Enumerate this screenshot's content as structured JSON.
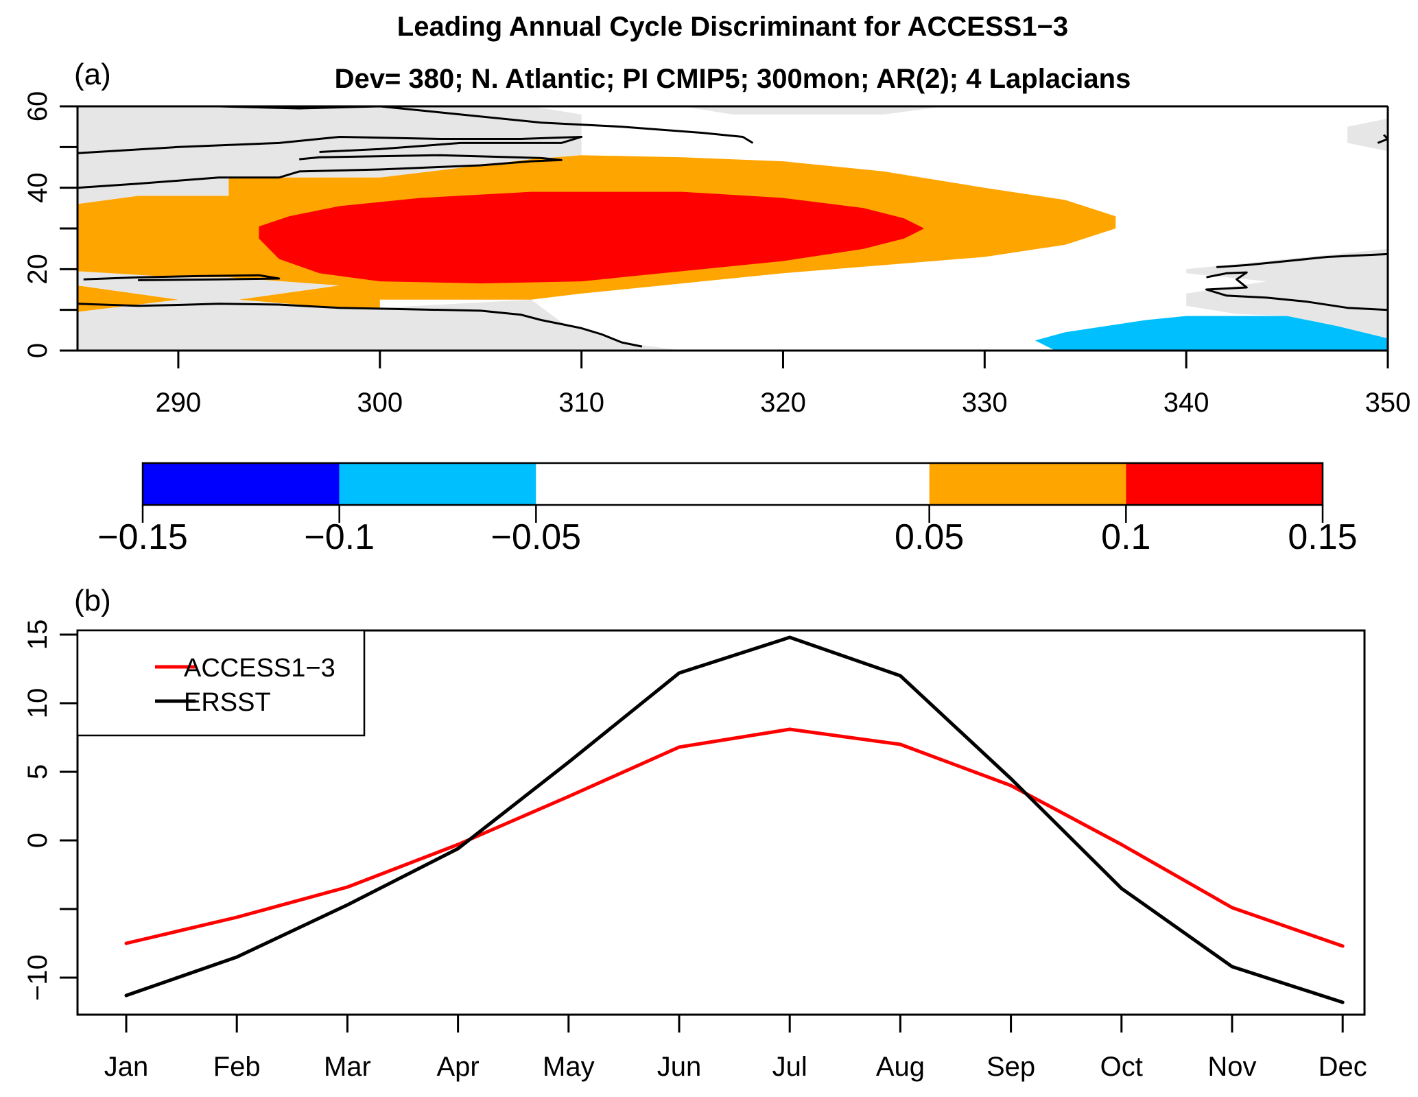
{
  "figure": {
    "title": "Leading Annual Cycle Discriminant for ACCESS1−3",
    "subtitle": "Dev= 380; N. Atlantic; PI CMIP5; 300mon; AR(2); 4 Laplacians"
  },
  "chart_data": [
    {
      "type": "heatmap",
      "panel_label": "(a)",
      "title": "Dev= 380; N. Atlantic; PI CMIP5; 300mon; AR(2); 4 Laplacians",
      "xlabel": "",
      "ylabel": "",
      "xlim": [
        285,
        350
      ],
      "ylim": [
        0,
        60
      ],
      "x_ticks": [
        290,
        300,
        310,
        320,
        330,
        340,
        350
      ],
      "x_tick_labels": [
        "290",
        "300",
        "310",
        "320",
        "330",
        "340",
        "350"
      ],
      "y_ticks": [
        0,
        10,
        20,
        30,
        40,
        50,
        60
      ],
      "y_tick_labels": [
        "0",
        "",
        "20",
        "",
        "40",
        "",
        "60"
      ],
      "colors": {
        "land": "#e6e6e6",
        "coast": "#000000",
        "level_neg_015_to_neg_01": "#0000ff",
        "level_neg_01_to_neg_005": "#00bfff",
        "level_neg_005_to_005": "#ffffff",
        "level_005_to_01": "#ffa500",
        "level_01_to_015": "#ff0000"
      },
      "regions": [
        {
          "name": "positive 0.05-0.1 (orange)",
          "level": [
            0.05,
            0.1
          ],
          "color": "#ffa500",
          "outline_lonlat": [
            [
              285,
              36
            ],
            [
              288,
              38
            ],
            [
              292.5,
              38
            ],
            [
              292.5,
              42.5
            ],
            [
              300,
              42.5
            ],
            [
              307.5,
              47
            ],
            [
              310,
              48
            ],
            [
              315,
              47.5
            ],
            [
              320,
              46.5
            ],
            [
              325,
              44
            ],
            [
              330,
              40
            ],
            [
              334,
              37
            ],
            [
              336.5,
              33
            ],
            [
              336.5,
              30
            ],
            [
              334,
              26
            ],
            [
              330,
              23
            ],
            [
              325,
              21
            ],
            [
              320,
              19
            ],
            [
              315,
              16.5
            ],
            [
              310,
              14
            ],
            [
              307.5,
              12.5
            ],
            [
              300,
              12.5
            ],
            [
              298,
              16
            ],
            [
              292.5,
              18
            ],
            [
              290,
              18
            ],
            [
              285,
              19.5
            ],
            [
              285,
              36
            ]
          ]
        },
        {
          "name": "positive 0.05-0.1 (orange, southwest lobe)",
          "level": [
            0.05,
            0.1
          ],
          "color": "#ffa500",
          "outline_lonlat": [
            [
              285,
              16
            ],
            [
              290,
              12.5
            ],
            [
              285,
              9.5
            ]
          ]
        },
        {
          "name": "positive 0.05-0.1 (orange, southwest lobe 2)",
          "level": [
            0.05,
            0.1
          ],
          "color": "#ffa500",
          "outline_lonlat": [
            [
              293,
              12.5
            ],
            [
              298,
              16
            ],
            [
              300,
              16
            ],
            [
              300,
              10.5
            ],
            [
              298,
              10.5
            ]
          ]
        },
        {
          "name": "positive 0.1-0.15 (red)",
          "level": [
            0.1,
            0.15
          ],
          "color": "#ff0000",
          "outline_lonlat": [
            [
              294,
              27.5
            ],
            [
              294,
              30.5
            ],
            [
              295.5,
              33
            ],
            [
              298,
              35.5
            ],
            [
              302,
              37.5
            ],
            [
              307.5,
              39
            ],
            [
              315,
              39
            ],
            [
              320,
              37.5
            ],
            [
              324,
              35
            ],
            [
              326,
              32.5
            ],
            [
              327,
              30
            ],
            [
              326,
              27.5
            ],
            [
              324,
              25
            ],
            [
              320,
              22
            ],
            [
              315,
              19.5
            ],
            [
              310,
              17
            ],
            [
              305,
              16.5
            ],
            [
              300,
              17
            ],
            [
              297,
              19
            ],
            [
              295,
              22.5
            ]
          ]
        },
        {
          "name": "negative -0.1 to -0.05 (light blue)",
          "level": [
            -0.1,
            -0.05
          ],
          "color": "#00bfff",
          "outline_lonlat": [
            [
              332.5,
              2.5
            ],
            [
              334,
              4.5
            ],
            [
              336,
              6
            ],
            [
              338,
              7.5
            ],
            [
              340,
              8.5
            ],
            [
              345,
              8.5
            ],
            [
              347.5,
              6
            ],
            [
              350,
              3
            ],
            [
              350,
              0
            ],
            [
              333.5,
              0
            ]
          ]
        }
      ],
      "land_regions": [
        {
          "name": "North America / Canada",
          "outline_lonlat": [
            [
              285,
              60
            ],
            [
              307.5,
              60
            ],
            [
              310,
              58
            ],
            [
              310,
              48
            ],
            [
              307.5,
              47
            ],
            [
              300,
              42.5
            ],
            [
              292.5,
              42.5
            ],
            [
              292.5,
              38
            ],
            [
              288,
              38
            ],
            [
              285,
              36
            ]
          ]
        },
        {
          "name": "Northern strip",
          "outline_lonlat": [
            [
              315,
              60
            ],
            [
              328,
              60
            ],
            [
              325,
              58
            ],
            [
              317.5,
              58
            ]
          ]
        },
        {
          "name": "Caribbean / Gulf",
          "outline_lonlat": [
            [
              285,
              19.5
            ],
            [
              290,
              18
            ],
            [
              292.5,
              18
            ],
            [
              298,
              16
            ],
            [
              293,
              12.5
            ],
            [
              298,
              10.5
            ],
            [
              300,
              10.5
            ],
            [
              307.5,
              12.5
            ],
            [
              309,
              7
            ],
            [
              312,
              2
            ],
            [
              315,
              0
            ],
            [
              285,
              0
            ],
            [
              285,
              9.5
            ],
            [
              290,
              12.5
            ],
            [
              285,
              16
            ]
          ]
        },
        {
          "name": "Europe edge",
          "outline_lonlat": [
            [
              348,
              55
            ],
            [
              350,
              57
            ],
            [
              350,
              49
            ],
            [
              348,
              51
            ]
          ]
        },
        {
          "name": "West Africa",
          "outline_lonlat": [
            [
              340,
              20
            ],
            [
              350,
              25
            ],
            [
              350,
              3
            ],
            [
              347.5,
              6
            ],
            [
              345,
              8.5
            ],
            [
              342.5,
              9
            ],
            [
              340,
              11
            ],
            [
              340,
              14
            ],
            [
              344,
              17
            ],
            [
              340,
              19
            ]
          ]
        }
      ],
      "coastlines_lonlat": [
        [
          [
            285,
            40
          ],
          [
            288,
            41
          ],
          [
            292,
            42.5
          ],
          [
            295,
            42.5
          ],
          [
            296,
            44
          ],
          [
            300,
            44.5
          ],
          [
            305,
            45.5
          ],
          [
            307.5,
            46.5
          ],
          [
            309,
            46.8
          ],
          [
            308,
            47.3
          ],
          [
            303,
            48
          ],
          [
            297,
            47.5
          ],
          [
            296,
            47
          ]
        ],
        [
          [
            285,
            48.5
          ],
          [
            290,
            50
          ],
          [
            295,
            51
          ],
          [
            298,
            52.5
          ],
          [
            303,
            52
          ],
          [
            307,
            52
          ],
          [
            310,
            52.5
          ],
          [
            309,
            51
          ],
          [
            304,
            51
          ],
          [
            300,
            49.5
          ],
          [
            297,
            48.8
          ]
        ],
        [
          [
            292,
            60
          ],
          [
            296,
            59.5
          ],
          [
            300,
            60
          ],
          [
            303,
            58.5
          ],
          [
            308,
            56
          ],
          [
            312,
            55
          ],
          [
            316,
            53.5
          ],
          [
            318,
            52.5
          ],
          [
            318.5,
            51
          ]
        ],
        [
          [
            285.3,
            17.5
          ],
          [
            288,
            18
          ],
          [
            291,
            18.3
          ],
          [
            294,
            18.5
          ],
          [
            295,
            17.7
          ],
          [
            292,
            17.5
          ],
          [
            288,
            17.3
          ]
        ],
        [
          [
            285,
            11.5
          ],
          [
            288,
            11
          ],
          [
            290,
            11.2
          ],
          [
            292,
            11.5
          ],
          [
            295,
            11.3
          ],
          [
            298,
            10.5
          ],
          [
            301,
            10.2
          ],
          [
            305,
            9.8
          ],
          [
            307,
            8.8
          ],
          [
            308,
            7.5
          ],
          [
            309,
            6.5
          ],
          [
            310,
            5.5
          ],
          [
            311,
            4
          ],
          [
            312,
            2
          ],
          [
            313,
            1
          ]
        ],
        [
          [
            341.5,
            20.5
          ],
          [
            343,
            21
          ],
          [
            345,
            22
          ],
          [
            347,
            23
          ],
          [
            350,
            23.7
          ]
        ],
        [
          [
            341,
            18
          ],
          [
            342,
            19
          ],
          [
            343,
            19.2
          ],
          [
            342.5,
            17.5
          ],
          [
            343,
            15.5
          ],
          [
            341,
            15
          ],
          [
            342,
            13.5
          ],
          [
            344,
            13
          ],
          [
            346,
            12
          ],
          [
            348,
            10.5
          ],
          [
            350,
            10
          ]
        ],
        [
          [
            349.8,
            53
          ],
          [
            350,
            52
          ],
          [
            349.5,
            51
          ]
        ]
      ],
      "colorbar": {
        "breaks": [
          -0.15,
          -0.1,
          -0.05,
          0.05,
          0.1,
          0.15
        ],
        "break_labels": [
          "−0.15",
          "−0.1",
          "−0.05",
          "0.05",
          "0.1",
          "0.15"
        ],
        "colors": [
          "#0000ff",
          "#00bfff",
          "#ffffff",
          "#ffa500",
          "#ff0000"
        ]
      }
    },
    {
      "type": "line",
      "panel_label": "(b)",
      "title": "",
      "xlabel": "",
      "ylabel": "",
      "categories": [
        "Jan",
        "Feb",
        "Mar",
        "Apr",
        "May",
        "Jun",
        "Jul",
        "Aug",
        "Sep",
        "Oct",
        "Nov",
        "Dec"
      ],
      "ylim": [
        -12.7,
        15.3
      ],
      "y_ticks": [
        -10,
        -5,
        0,
        5,
        10,
        15
      ],
      "y_tick_labels": [
        "−10",
        "",
        "0",
        "5",
        "10",
        "15"
      ],
      "legend_position": "top-left",
      "grid": false,
      "series": [
        {
          "name": "ACCESS1−3",
          "color": "#ff0000",
          "values": [
            -7.5,
            -5.6,
            -3.4,
            -0.3,
            3.2,
            6.8,
            8.1,
            7.0,
            4.0,
            -0.3,
            -4.9,
            -7.7
          ]
        },
        {
          "name": "ERSST",
          "color": "#000000",
          "values": [
            -11.3,
            -8.5,
            -4.7,
            -0.6,
            5.7,
            12.2,
            14.8,
            12.0,
            4.5,
            -3.5,
            -9.2,
            -11.8
          ]
        }
      ]
    }
  ]
}
